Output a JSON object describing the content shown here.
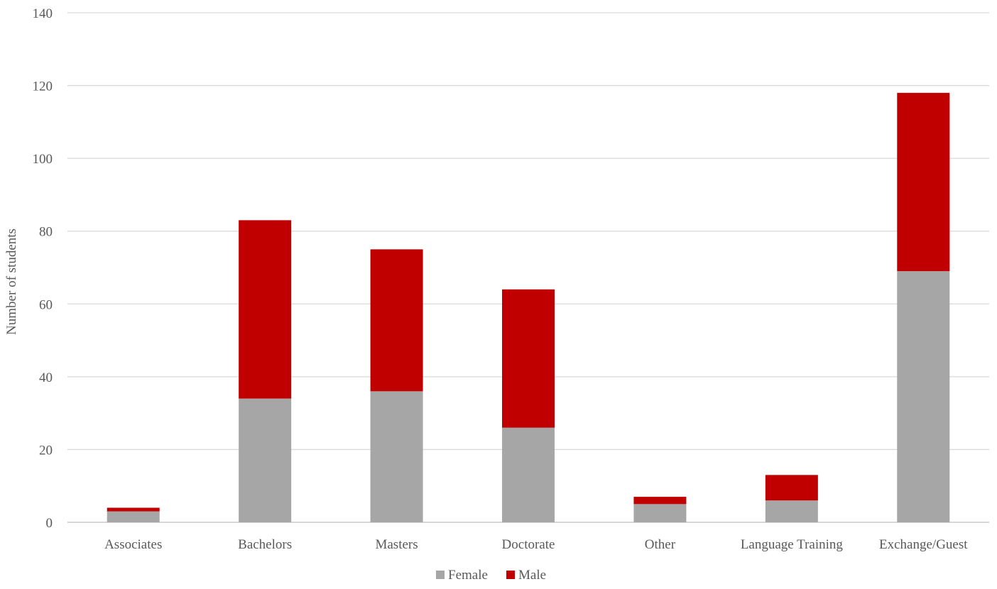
{
  "chart_data": {
    "type": "bar",
    "stacked": true,
    "title": "",
    "xlabel": "",
    "ylabel": "Number of students",
    "categories": [
      "Associates",
      "Bachelors",
      "Masters",
      "Doctorate",
      "Other",
      "Language Training",
      "Exchange/Guest"
    ],
    "series": [
      {
        "name": "Female",
        "color": "#a6a6a6",
        "values": [
          3,
          34,
          36,
          26,
          5,
          6,
          69
        ]
      },
      {
        "name": "Male",
        "color": "#c00000",
        "values": [
          1,
          49,
          39,
          38,
          2,
          7,
          49
        ]
      }
    ],
    "ylim": [
      0,
      140
    ],
    "yticks": [
      0,
      20,
      40,
      60,
      80,
      100,
      120,
      140
    ],
    "grid": true,
    "legend_position": "bottom"
  }
}
